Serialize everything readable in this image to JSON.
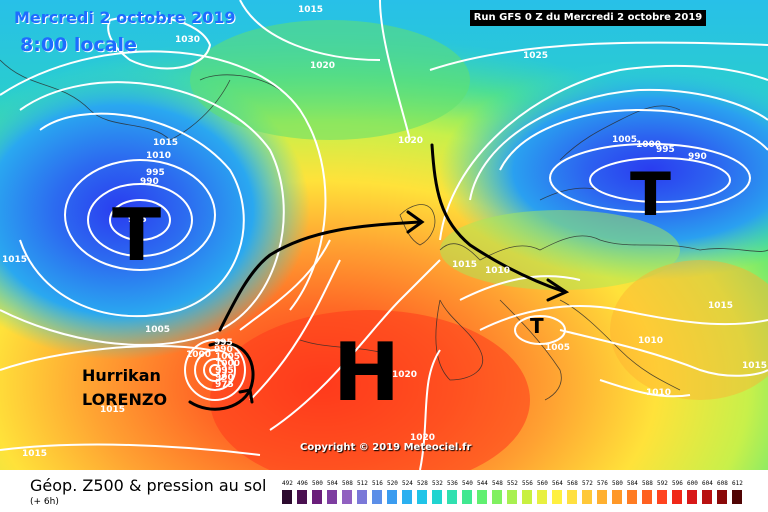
{
  "header": {
    "date_line": "Mercredi 2 octobre 2019",
    "time_line": "8:00 locale",
    "run_info": "Run GFS 0 Z du Mercredi 2 octobre 2019"
  },
  "map": {
    "copyright": "Copyright © 2019 Meteociel.fr",
    "systems": [
      {
        "symbol": "T",
        "meaning": "low pressure",
        "location": "south of Greenland"
      },
      {
        "symbol": "T",
        "meaning": "low pressure",
        "location": "Scandinavia"
      },
      {
        "symbol": "H",
        "meaning": "high pressure",
        "location": "Azores"
      },
      {
        "symbol": "T",
        "meaning": "low pressure",
        "location": "northern Italy"
      }
    ],
    "storm": {
      "line1": "Hurrikan",
      "line2": "LORENZO"
    },
    "isobar_labels": [
      "1015",
      "1030",
      "1020",
      "1025",
      "1005",
      "1010",
      "995",
      "990",
      "985",
      "1015",
      "1000",
      "995",
      "990",
      "1020",
      "1005",
      "1000",
      "995",
      "990",
      "1015",
      "1010",
      "1015",
      "1005",
      "1010",
      "1010",
      "1015",
      "1020",
      "1005",
      "1000",
      "995",
      "990",
      "975",
      "1020",
      "1015",
      "1015",
      "1015"
    ],
    "colors": {
      "isobar": "#ffffff",
      "arrow": "#000000",
      "date_text": "#1e6cff"
    }
  },
  "legend": {
    "title": "Géop. Z500 & pression au sol",
    "subtitle": "(+ 6h)",
    "scale_values": [
      "492",
      "496",
      "500",
      "504",
      "508",
      "512",
      "516",
      "520",
      "524",
      "528",
      "532",
      "536",
      "540",
      "544",
      "548",
      "552",
      "556",
      "560",
      "564",
      "568",
      "572",
      "576",
      "580",
      "584",
      "588",
      "592",
      "596",
      "600",
      "604",
      "608",
      "612"
    ],
    "scale_colors": [
      "#2c0a2e",
      "#4a1050",
      "#6a1e7a",
      "#7d3da0",
      "#9060c0",
      "#7a78d8",
      "#5b8ee8",
      "#3a9cf0",
      "#2ab0f0",
      "#20c4e8",
      "#20d4d0",
      "#30e0b0",
      "#40e890",
      "#60f070",
      "#80f060",
      "#a8f050",
      "#c8f040",
      "#e8f040",
      "#fff040",
      "#ffe040",
      "#ffc838",
      "#ffb030",
      "#ff9828",
      "#ff7c24",
      "#ff6020",
      "#ff4420",
      "#f02818",
      "#d81818",
      "#b81010",
      "#8a0808",
      "#500404"
    ]
  }
}
